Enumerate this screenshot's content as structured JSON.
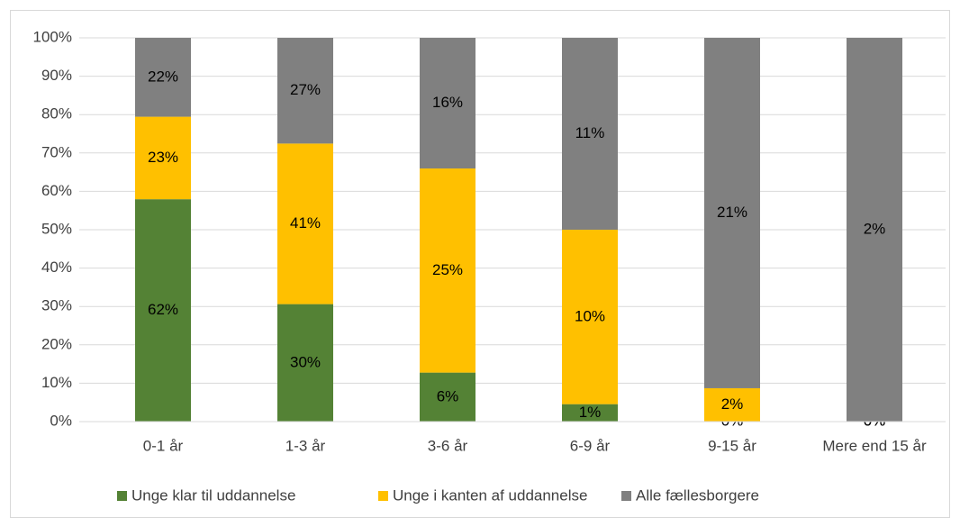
{
  "chart_data": {
    "type": "bar",
    "stacking": "percent",
    "categories": [
      "0-1 år",
      "1-3 år",
      "3-6 år",
      "6-9 år",
      "9-15 år",
      "Mere end 15 år"
    ],
    "series": [
      {
        "name": "Unge klar til uddannelse",
        "color": "#548235",
        "values": [
          62,
          30,
          6,
          1,
          0,
          0
        ],
        "value_labels": [
          "62%",
          "30%",
          "6%",
          "1%",
          "0%",
          "0%"
        ]
      },
      {
        "name": "Unge i kanten af uddannelse",
        "color": "#ffc000",
        "values": [
          23,
          41,
          25,
          10,
          2,
          0
        ],
        "value_labels": [
          "23%",
          "41%",
          "25%",
          "10%",
          "2%",
          "0%"
        ]
      },
      {
        "name": "Alle fællesborgere",
        "color": "#808080",
        "values": [
          22,
          27,
          16,
          11,
          21,
          2
        ],
        "value_labels": [
          "22%",
          "27%",
          "16%",
          "11%",
          "21%",
          "2%"
        ]
      }
    ],
    "ylim": [
      0,
      100
    ],
    "yticks": [
      {
        "value": 0,
        "label": "0%"
      },
      {
        "value": 10,
        "label": "10%"
      },
      {
        "value": 20,
        "label": "20%"
      },
      {
        "value": 30,
        "label": "30%"
      },
      {
        "value": 40,
        "label": "40%"
      },
      {
        "value": 50,
        "label": "50%"
      },
      {
        "value": 60,
        "label": "60%"
      },
      {
        "value": 70,
        "label": "70%"
      },
      {
        "value": 80,
        "label": "80%"
      },
      {
        "value": 90,
        "label": "90%"
      },
      {
        "value": 100,
        "label": "100%"
      }
    ],
    "grid": true,
    "legend": "bottom"
  }
}
